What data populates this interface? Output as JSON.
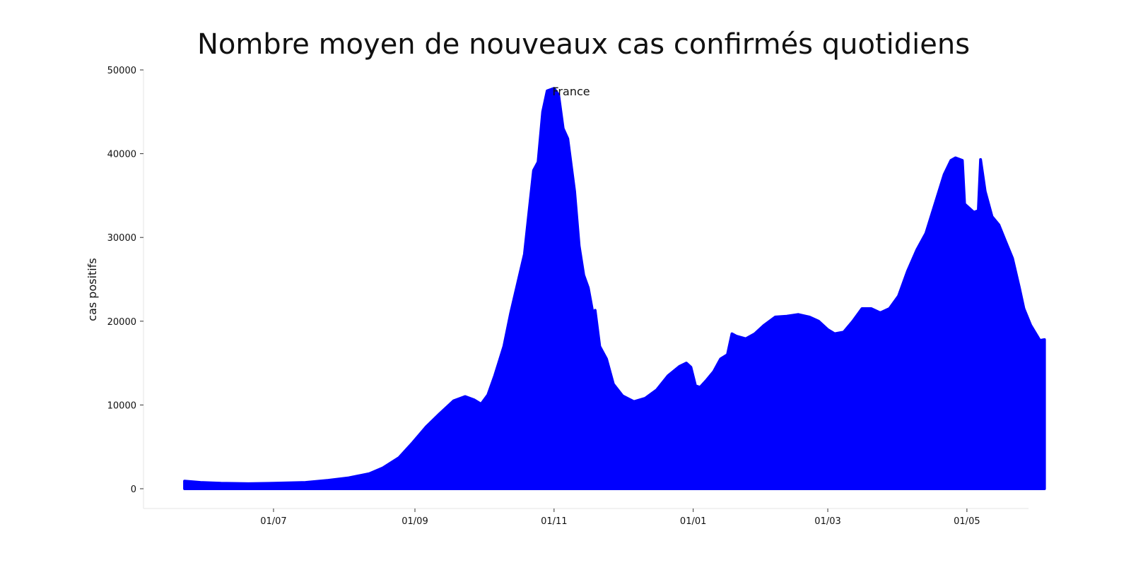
{
  "chart_data": {
    "type": "area",
    "title": "Nombre moyen de nouveaux cas confirmés quotidiens",
    "subtitle": "France",
    "xlabel": "",
    "ylabel": "cas positifs",
    "ylim": [
      0,
      50000
    ],
    "y_ticks": [
      0,
      10000,
      20000,
      30000,
      40000,
      50000
    ],
    "x_ticks": [
      {
        "date": "2020-07-01",
        "label": "01/07"
      },
      {
        "date": "2020-09-01",
        "label": "01/09"
      },
      {
        "date": "2020-11-01",
        "label": "01/11"
      },
      {
        "date": "2021-01-01",
        "label": "01/01"
      },
      {
        "date": "2021-03-01",
        "label": "01/03"
      },
      {
        "date": "2021-05-01",
        "label": "01/05"
      }
    ],
    "xlim": [
      "2020-05-05",
      "2021-05-28"
    ],
    "color": "#0000ff",
    "grid": false,
    "series": [
      {
        "points": [
          [
            "2020-05-23",
            900
          ],
          [
            "2020-05-30",
            750
          ],
          [
            "2020-06-08",
            650
          ],
          [
            "2020-06-20",
            600
          ],
          [
            "2020-07-01",
            650
          ],
          [
            "2020-07-15",
            750
          ],
          [
            "2020-07-25",
            1000
          ],
          [
            "2020-08-03",
            1300
          ],
          [
            "2020-08-12",
            1800
          ],
          [
            "2020-08-18",
            2500
          ],
          [
            "2020-08-25",
            3700
          ],
          [
            "2020-08-31",
            5500
          ],
          [
            "2020-09-06",
            7400
          ],
          [
            "2020-09-12",
            9000
          ],
          [
            "2020-09-18",
            10500
          ],
          [
            "2020-09-23",
            11000
          ],
          [
            "2020-09-27",
            10600
          ],
          [
            "2020-09-30",
            10100
          ],
          [
            "2020-10-03",
            11200
          ],
          [
            "2020-10-06",
            13500
          ],
          [
            "2020-10-10",
            17000
          ],
          [
            "2020-10-13",
            21000
          ],
          [
            "2020-10-16",
            24500
          ],
          [
            "2020-10-19",
            28000
          ],
          [
            "2020-10-21",
            33000
          ],
          [
            "2020-10-23",
            38000
          ],
          [
            "2020-10-25",
            39000
          ],
          [
            "2020-10-27",
            45000
          ],
          [
            "2020-10-29",
            47500
          ],
          [
            "2020-11-01",
            47800
          ],
          [
            "2020-11-03",
            47000
          ],
          [
            "2020-11-05",
            43000
          ],
          [
            "2020-11-07",
            41800
          ],
          [
            "2020-11-10",
            35500
          ],
          [
            "2020-11-12",
            29000
          ],
          [
            "2020-11-14",
            25500
          ],
          [
            "2020-11-16",
            24000
          ],
          [
            "2020-11-18",
            21000
          ],
          [
            "2020-11-19",
            21300
          ],
          [
            "2020-11-21",
            17000
          ],
          [
            "2020-11-24",
            15500
          ],
          [
            "2020-11-27",
            12500
          ],
          [
            "2020-12-01",
            11100
          ],
          [
            "2020-12-06",
            10400
          ],
          [
            "2020-12-11",
            10800
          ],
          [
            "2020-12-16",
            11800
          ],
          [
            "2020-12-21",
            13500
          ],
          [
            "2020-12-26",
            14600
          ],
          [
            "2020-12-29",
            15000
          ],
          [
            "2020-12-31",
            14500
          ],
          [
            "2021-01-02",
            12300
          ],
          [
            "2021-01-04",
            12100
          ],
          [
            "2021-01-07",
            13000
          ],
          [
            "2021-01-10",
            14000
          ],
          [
            "2021-01-13",
            15500
          ],
          [
            "2021-01-16",
            16000
          ],
          [
            "2021-01-18",
            18500
          ],
          [
            "2021-01-20",
            18200
          ],
          [
            "2021-01-24",
            17900
          ],
          [
            "2021-01-28",
            18500
          ],
          [
            "2021-02-01",
            19500
          ],
          [
            "2021-02-06",
            20500
          ],
          [
            "2021-02-11",
            20600
          ],
          [
            "2021-02-16",
            20800
          ],
          [
            "2021-02-21",
            20500
          ],
          [
            "2021-02-25",
            20000
          ],
          [
            "2021-03-01",
            19000
          ],
          [
            "2021-03-04",
            18500
          ],
          [
            "2021-03-08",
            18700
          ],
          [
            "2021-03-12",
            20000
          ],
          [
            "2021-03-16",
            21500
          ],
          [
            "2021-03-20",
            21500
          ],
          [
            "2021-03-24",
            21000
          ],
          [
            "2021-03-28",
            21500
          ],
          [
            "2021-04-01",
            23000
          ],
          [
            "2021-04-05",
            26000
          ],
          [
            "2021-04-09",
            28500
          ],
          [
            "2021-04-13",
            30500
          ],
          [
            "2021-04-17",
            34000
          ],
          [
            "2021-04-21",
            37500
          ],
          [
            "2021-04-24",
            39200
          ],
          [
            "2021-04-26",
            39500
          ],
          [
            "2021-04-29",
            39200
          ],
          [
            "2021-04-30",
            34000
          ],
          [
            "2021-05-02",
            33500
          ],
          [
            "2021-05-04",
            33000
          ],
          [
            "2021-05-06",
            33200
          ],
          [
            "2021-05-07",
            39300
          ],
          [
            "2021-05-09",
            35500
          ],
          [
            "2021-05-12",
            32500
          ],
          [
            "2021-05-15",
            31500
          ],
          [
            "2021-05-18",
            29500
          ],
          [
            "2021-05-21",
            27500
          ],
          [
            "2021-05-24",
            24000
          ],
          [
            "2021-05-26",
            21500
          ],
          [
            "2021-05-29",
            19500
          ],
          [
            "2021-06-02",
            17700
          ],
          [
            "2021-06-04",
            17800
          ]
        ]
      }
    ]
  }
}
